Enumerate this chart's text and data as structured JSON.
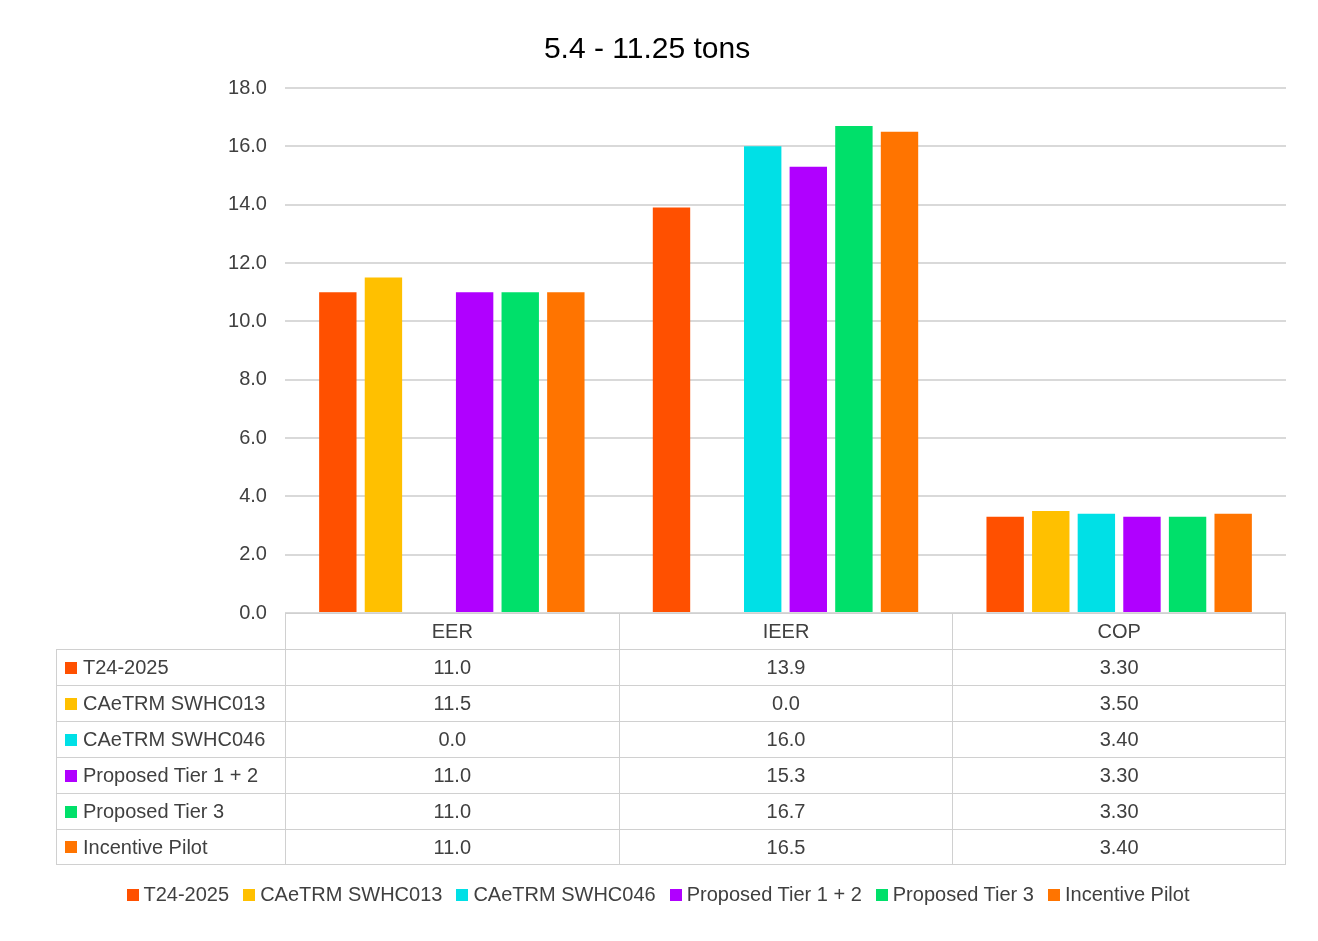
{
  "chart_data": {
    "type": "bar",
    "title": "5.4 - 11.25 tons",
    "categories": [
      "EER",
      "IEER",
      "COP"
    ],
    "series": [
      {
        "name": "T24-2025",
        "color": "#ff5000",
        "values": [
          11.0,
          13.9,
          3.3
        ],
        "value_labels": [
          "11.0",
          "13.9",
          "3.30"
        ]
      },
      {
        "name": "CAeTRM SWHC013",
        "color": "#ffc000",
        "values": [
          11.5,
          0.0,
          3.5
        ],
        "value_labels": [
          "11.5",
          "0.0",
          "3.50"
        ]
      },
      {
        "name": "CAeTRM SWHC046",
        "color": "#00e0e6",
        "values": [
          0.0,
          16.0,
          3.4
        ],
        "value_labels": [
          "0.0",
          "16.0",
          "3.40"
        ]
      },
      {
        "name": "Proposed Tier 1 + 2",
        "color": "#b000ff",
        "values": [
          11.0,
          15.3,
          3.3
        ],
        "value_labels": [
          "11.0",
          "15.3",
          "3.30"
        ]
      },
      {
        "name": "Proposed Tier 3",
        "color": "#00e06a",
        "values": [
          11.0,
          16.7,
          3.3
        ],
        "value_labels": [
          "11.0",
          "16.7",
          "3.30"
        ]
      },
      {
        "name": "Incentive Pilot",
        "color": "#ff7400",
        "values": [
          11.0,
          16.5,
          3.4
        ],
        "value_labels": [
          "11.0",
          "16.5",
          "3.40"
        ]
      }
    ],
    "ylim": [
      0,
      18
    ],
    "yticks": [
      {
        "value": 0,
        "label": "0.0"
      },
      {
        "value": 2,
        "label": "2.0"
      },
      {
        "value": 4,
        "label": "4.0"
      },
      {
        "value": 6,
        "label": "6.0"
      },
      {
        "value": 8,
        "label": "8.0"
      },
      {
        "value": 10,
        "label": "10.0"
      },
      {
        "value": 12,
        "label": "12.0"
      },
      {
        "value": 14,
        "label": "14.0"
      },
      {
        "value": 16,
        "label": "16.0"
      },
      {
        "value": 18,
        "label": "18.0"
      }
    ],
    "grid": "y",
    "legend": "bottom"
  }
}
